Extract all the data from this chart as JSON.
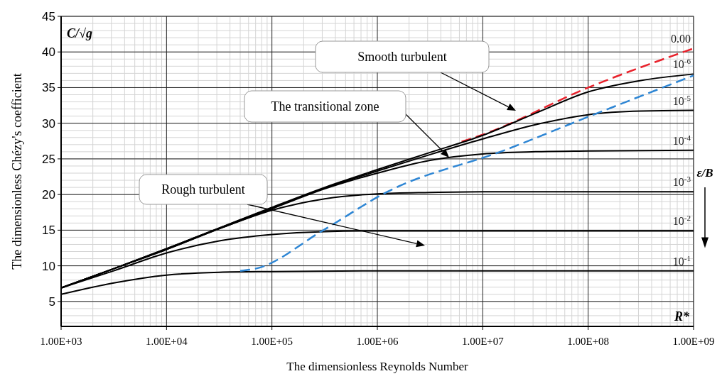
{
  "chart_data": {
    "type": "line",
    "xlabel": "The dimensionless Reynolds Number",
    "ylabel": "The dimensionless Chézy's coefficient",
    "legend_title": "ε/B",
    "log": "x",
    "grid": true,
    "line_style": "solid",
    "xlim": [
      1000,
      1000000000
    ],
    "ylim": [
      1.5,
      45
    ],
    "xticks": [
      {
        "value": 1000,
        "label": "1.00E+03"
      },
      {
        "value": 10000,
        "label": "1.00E+04"
      },
      {
        "value": 100000,
        "label": "1.00E+05"
      },
      {
        "value": 1000000,
        "label": "1.00E+06"
      },
      {
        "value": 10000000,
        "label": "1.00E+07"
      },
      {
        "value": 100000000,
        "label": "1.00E+08"
      },
      {
        "value": 1000000000,
        "label": "1.00E+09"
      }
    ],
    "yticks": [
      5,
      10,
      15,
      20,
      25,
      30,
      35,
      40,
      45
    ],
    "series": [
      {
        "name": "0.00",
        "color": "#e8212b",
        "line_style": "dashed",
        "x": [
          6300000,
          10000000,
          100000000,
          1000000000
        ],
        "values": [
          27.4,
          28.4,
          35.0,
          40.5
        ]
      },
      {
        "name": "10$^{-6}$",
        "color": "#000000",
        "x": [
          1000,
          3162,
          10000,
          31623,
          100000,
          316228,
          1000000,
          3162278,
          10000000,
          31622777,
          100000000,
          316227766,
          1000000000
        ],
        "values": [
          6.9,
          9.6,
          12.4,
          15.3,
          18.2,
          21.0,
          23.5,
          25.9,
          28.3,
          31.4,
          34.4,
          36.0,
          36.9
        ]
      },
      {
        "name": "10$^{-5}$",
        "color": "#000000",
        "x": [
          1000,
          3162,
          10000,
          31623,
          100000,
          316228,
          1000000,
          3162278,
          10000000,
          31622777,
          100000000,
          316227766,
          1000000000
        ],
        "values": [
          6.9,
          9.6,
          12.4,
          15.3,
          18.1,
          20.9,
          23.3,
          25.6,
          27.8,
          29.8,
          31.2,
          31.7,
          31.8
        ]
      },
      {
        "name": "10$^{-4}$",
        "color": "#000000",
        "x": [
          1000,
          3162,
          10000,
          31623,
          100000,
          316228,
          1000000,
          3162278,
          10000000,
          31622777,
          100000000,
          1000000000
        ],
        "values": [
          6.9,
          9.6,
          12.3,
          15.2,
          18.0,
          20.8,
          23.0,
          24.8,
          25.7,
          26.0,
          26.1,
          26.2
        ]
      },
      {
        "name": "10$^{-3}$",
        "color": "#000000",
        "x": [
          1000,
          3162,
          10000,
          31623,
          100000,
          316228,
          1000000,
          3162278,
          10000000,
          1000000000
        ],
        "values": [
          6.9,
          9.6,
          12.3,
          15.2,
          17.8,
          19.4,
          20.1,
          20.3,
          20.4,
          20.4
        ]
      },
      {
        "name": "10$^{-2}$",
        "color": "#000000",
        "x": [
          1000,
          3162,
          10000,
          31623,
          100000,
          316228,
          1000000,
          1000000000
        ],
        "values": [
          6.9,
          9.3,
          11.8,
          13.5,
          14.4,
          14.8,
          14.9,
          14.9
        ]
      },
      {
        "name": "10$^{-1}$",
        "color": "#000000",
        "x": [
          1000,
          3162,
          10000,
          31623,
          100000,
          1000000,
          1000000000
        ],
        "values": [
          6.0,
          7.6,
          8.7,
          9.1,
          9.2,
          9.3,
          9.3
        ]
      },
      {
        "color": "#2e86d4",
        "line_style": "dashed",
        "x": [
          50000,
          70000,
          300000,
          1250000,
          16000000,
          100000000,
          1000000000
        ],
        "values": [
          9.3,
          9.6,
          14.9,
          20.4,
          26.2,
          30.9,
          36.7
        ]
      }
    ],
    "annotations": [
      "Smooth turbulent",
      "The transitional zone",
      "Rough turbulent",
      "C/√g",
      "R*"
    ]
  }
}
